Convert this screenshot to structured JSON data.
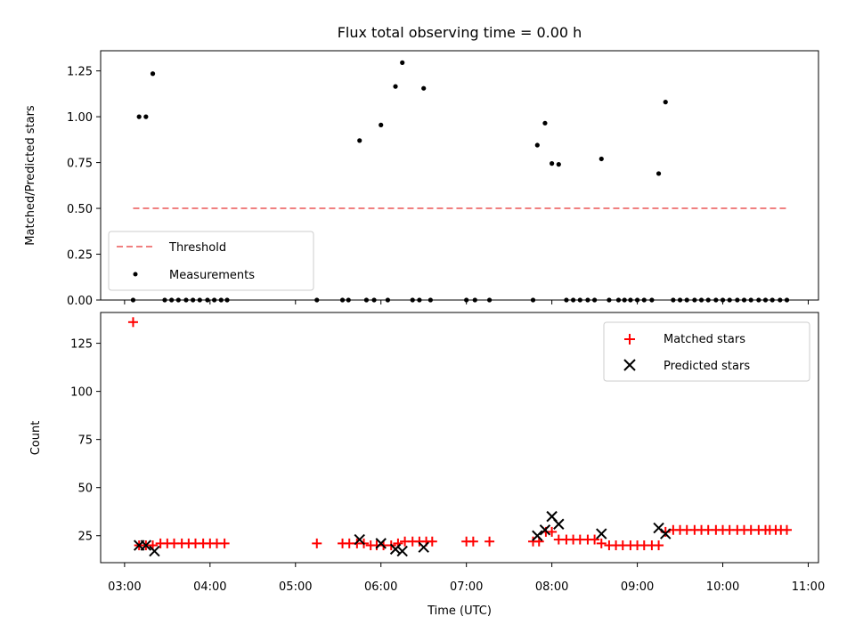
{
  "title": "Flux total observing time = 0.00 h",
  "chart_data": [
    {
      "type": "scatter",
      "panel": "top",
      "title": "Flux total observing time = 0.00 h",
      "ylabel": "Matched/Predicted stars",
      "xlabel": "",
      "xlim": [
        2.72,
        11.12
      ],
      "ylim": [
        0,
        1.36
      ],
      "x_ticks": [
        3,
        4,
        5,
        6,
        7,
        8,
        9,
        10,
        11
      ],
      "y_ticks": [
        0.0,
        0.25,
        0.5,
        0.75,
        1.0,
        1.25
      ],
      "y_tick_labels": [
        "0.00",
        "0.25",
        "0.50",
        "0.75",
        "1.00",
        "1.25"
      ],
      "legend_position": "lower-left",
      "grid": false,
      "threshold": {
        "name": "Threshold",
        "x_range": [
          3.1,
          10.75
        ],
        "y": 0.5,
        "color": "#f08080",
        "style": "dashed"
      },
      "series": [
        {
          "name": "Measurements",
          "color": "#000000",
          "marker": "dot",
          "x": [
            3.17,
            3.25,
            3.33,
            5.75,
            6.0,
            6.17,
            6.25,
            6.5,
            7.83,
            7.92,
            8.0,
            8.08,
            8.58,
            9.25,
            9.33,
            3.1,
            3.47,
            3.55,
            3.63,
            3.72,
            3.8,
            3.88,
            3.97,
            4.05,
            4.13,
            4.2,
            5.25,
            5.55,
            5.62,
            5.83,
            5.92,
            6.08,
            6.37,
            6.45,
            6.58,
            7.0,
            7.1,
            7.27,
            7.78,
            8.17,
            8.25,
            8.33,
            8.42,
            8.5,
            8.67,
            8.78,
            8.85,
            8.92,
            9.0,
            9.08,
            9.17,
            9.42,
            9.5,
            9.58,
            9.67,
            9.75,
            9.83,
            9.92,
            10.0,
            10.08,
            10.17,
            10.25,
            10.33,
            10.42,
            10.5,
            10.58,
            10.67,
            10.75
          ],
          "y": [
            1.0,
            1.0,
            1.235,
            0.87,
            0.955,
            1.165,
            1.295,
            1.155,
            0.845,
            0.965,
            0.745,
            0.74,
            0.77,
            0.69,
            1.08,
            0,
            0,
            0,
            0,
            0,
            0,
            0,
            0,
            0,
            0,
            0,
            0,
            0,
            0,
            0,
            0,
            0,
            0,
            0,
            0,
            0,
            0,
            0,
            0,
            0,
            0,
            0,
            0,
            0,
            0,
            0,
            0,
            0,
            0,
            0,
            0,
            0,
            0,
            0,
            0,
            0,
            0,
            0,
            0,
            0,
            0,
            0,
            0,
            0,
            0,
            0,
            0,
            0
          ]
        }
      ]
    },
    {
      "type": "scatter",
      "panel": "bottom",
      "xlabel": "Time (UTC)",
      "ylabel": "Count",
      "xlim": [
        2.72,
        11.12
      ],
      "ylim": [
        11,
        141
      ],
      "x_ticks": [
        3,
        4,
        5,
        6,
        7,
        8,
        9,
        10,
        11
      ],
      "x_tick_labels": [
        "03:00",
        "04:00",
        "05:00",
        "06:00",
        "07:00",
        "08:00",
        "09:00",
        "10:00",
        "11:00"
      ],
      "y_ticks": [
        25,
        50,
        75,
        100,
        125
      ],
      "y_tick_labels": [
        "25",
        "50",
        "75",
        "100",
        "125"
      ],
      "legend_position": "upper-right",
      "grid": false,
      "series": [
        {
          "name": "Matched stars",
          "color": "#ff0000",
          "marker": "plus",
          "x": [
            3.1,
            3.17,
            3.25,
            3.33,
            3.42,
            3.5,
            3.58,
            3.67,
            3.75,
            3.83,
            3.92,
            4.0,
            4.08,
            4.17,
            5.25,
            5.55,
            5.63,
            5.72,
            5.8,
            5.88,
            5.95,
            6.03,
            6.12,
            6.2,
            6.28,
            6.37,
            6.45,
            6.53,
            6.6,
            7.0,
            7.08,
            7.27,
            7.78,
            7.85,
            7.93,
            8.0,
            8.08,
            8.17,
            8.25,
            8.33,
            8.42,
            8.5,
            8.58,
            8.67,
            8.75,
            8.83,
            8.92,
            9.0,
            9.08,
            9.17,
            9.25,
            9.33,
            9.42,
            9.5,
            9.58,
            9.67,
            9.75,
            9.83,
            9.92,
            10.0,
            10.08,
            10.17,
            10.25,
            10.33,
            10.42,
            10.5,
            10.55,
            10.62,
            10.68,
            10.75
          ],
          "y": [
            136,
            20,
            20,
            20,
            21,
            21,
            21,
            21,
            21,
            21,
            21,
            21,
            21,
            21,
            21,
            21,
            21,
            21,
            21,
            20,
            20,
            20,
            20,
            21,
            22,
            22,
            22,
            22,
            22,
            22,
            22,
            22,
            22,
            22,
            27,
            27,
            23,
            23,
            23,
            23,
            23,
            23,
            21,
            20,
            20,
            20,
            20,
            20,
            20,
            20,
            20,
            27,
            28,
            28,
            28,
            28,
            28,
            28,
            28,
            28,
            28,
            28,
            28,
            28,
            28,
            28,
            28,
            28,
            28,
            28
          ]
        },
        {
          "name": "Predicted stars",
          "color": "#000000",
          "marker": "x",
          "x": [
            3.17,
            3.25,
            3.35,
            5.75,
            6.0,
            6.17,
            6.25,
            6.5,
            7.83,
            7.92,
            8.0,
            8.08,
            8.58,
            9.25,
            9.33
          ],
          "y": [
            20,
            20,
            17,
            23,
            21,
            18,
            17,
            19,
            25,
            28,
            35,
            31,
            26,
            29,
            26
          ]
        }
      ]
    }
  ]
}
